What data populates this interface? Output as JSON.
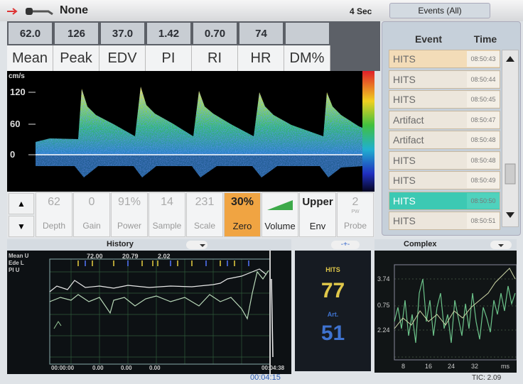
{
  "top_bar": {
    "source": "None",
    "sweep": "4 Sec"
  },
  "metrics": [
    {
      "value": "62.0",
      "label": "Mean"
    },
    {
      "value": "126",
      "label": "Peak"
    },
    {
      "value": "37.0",
      "label": "EDV"
    },
    {
      "value": "1.42",
      "label": "PI"
    },
    {
      "value": "0.70",
      "label": "RI"
    },
    {
      "value": "74",
      "label": "HR"
    },
    {
      "label": "DM%"
    }
  ],
  "spectrum_axis": {
    "unit": "cm/s",
    "ticks": [
      "120",
      "60",
      "0"
    ]
  },
  "controls": [
    {
      "value": "62",
      "label": "Depth"
    },
    {
      "value": "0",
      "label": "Gain"
    },
    {
      "value": "91%",
      "label": "Power"
    },
    {
      "value": "14",
      "label": "Sample"
    },
    {
      "value": "231",
      "label": "Scale"
    },
    {
      "value": "30%",
      "label": "Zero"
    },
    {
      "label": "Volume"
    },
    {
      "value": "Upper",
      "label": "Env"
    },
    {
      "value": "2",
      "sub": "PW",
      "label": "Probe"
    }
  ],
  "events": {
    "tab": "Events (All)",
    "columns": [
      "Event",
      "Time"
    ],
    "rows": [
      [
        "HITS",
        "08:50:43"
      ],
      [
        "HITS",
        "08:50:44"
      ],
      [
        "HITS",
        "08:50:45"
      ],
      [
        "Artifact",
        "08:50:47"
      ],
      [
        "Artifact",
        "08:50:48"
      ],
      [
        "HITS",
        "08:50:48"
      ],
      [
        "HITS",
        "08:50:49"
      ],
      [
        "HITS",
        "08:50:50"
      ],
      [
        "HITS",
        "08:50:51"
      ]
    ],
    "selected_row": 7
  },
  "history": {
    "title": "History",
    "traces": [
      "Mean U",
      "Ede L",
      "PI U"
    ],
    "top_values": [
      "72.00",
      "20.79",
      "2.02"
    ],
    "bottom_labels": [
      "00:00:00",
      "0.00",
      "0.00",
      "0.00",
      "00:04:38"
    ],
    "cursor_time": "00:04:15"
  },
  "counts": {
    "hits_label": "HITS",
    "hits": "77",
    "art_label": "Art.",
    "art": "51"
  },
  "complex": {
    "title": "Complex",
    "y_labels": [
      "3.74",
      "0.75",
      "2.24"
    ],
    "x_labels": [
      "8",
      "16",
      "24",
      "32",
      "ms"
    ],
    "tic": "TIC: 2.09"
  }
}
